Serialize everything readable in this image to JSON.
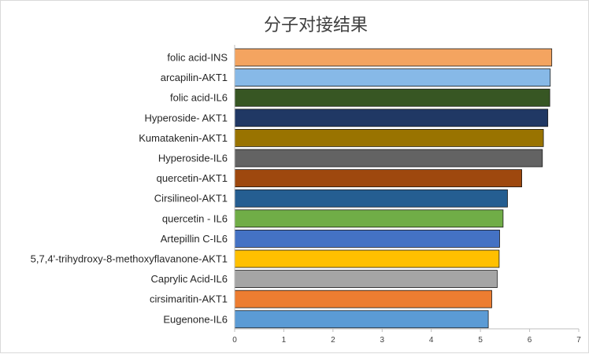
{
  "chart_data": {
    "type": "bar",
    "orientation": "horizontal",
    "title": "分子对接结果",
    "categories": [
      "folic acid-INS",
      "arcapilin-AKT1",
      "folic acid-IL6",
      "Hyperoside- AKT1",
      "Kumatakenin-AKT1",
      "Hyperoside-IL6",
      "quercetin-AKT1",
      "Cirsilineol-AKT1",
      "quercetin - IL6",
      "Artepillin C-IL6",
      "5,7,4'-trihydroxy-8-methoxyflavanone-AKT1",
      "Caprylic Acid-IL6",
      "cirsimaritin-AKT1",
      "Eugenone-IL6"
    ],
    "values": [
      6.45,
      6.42,
      6.41,
      6.37,
      6.28,
      6.26,
      5.84,
      5.55,
      5.46,
      5.39,
      5.38,
      5.34,
      5.23,
      5.16
    ],
    "colors": [
      "#f4a460",
      "#87b9e7",
      "#375623",
      "#203864",
      "#997300",
      "#636363",
      "#9e480e",
      "#255e91",
      "#70ad47",
      "#4472c4",
      "#ffc000",
      "#a5a5a5",
      "#ed7d31",
      "#5b9bd5"
    ],
    "xlim": [
      0,
      7
    ],
    "xticks": [
      "0",
      "1",
      "2",
      "3",
      "4",
      "5",
      "6",
      "7"
    ],
    "grid": false,
    "legend": "none"
  }
}
